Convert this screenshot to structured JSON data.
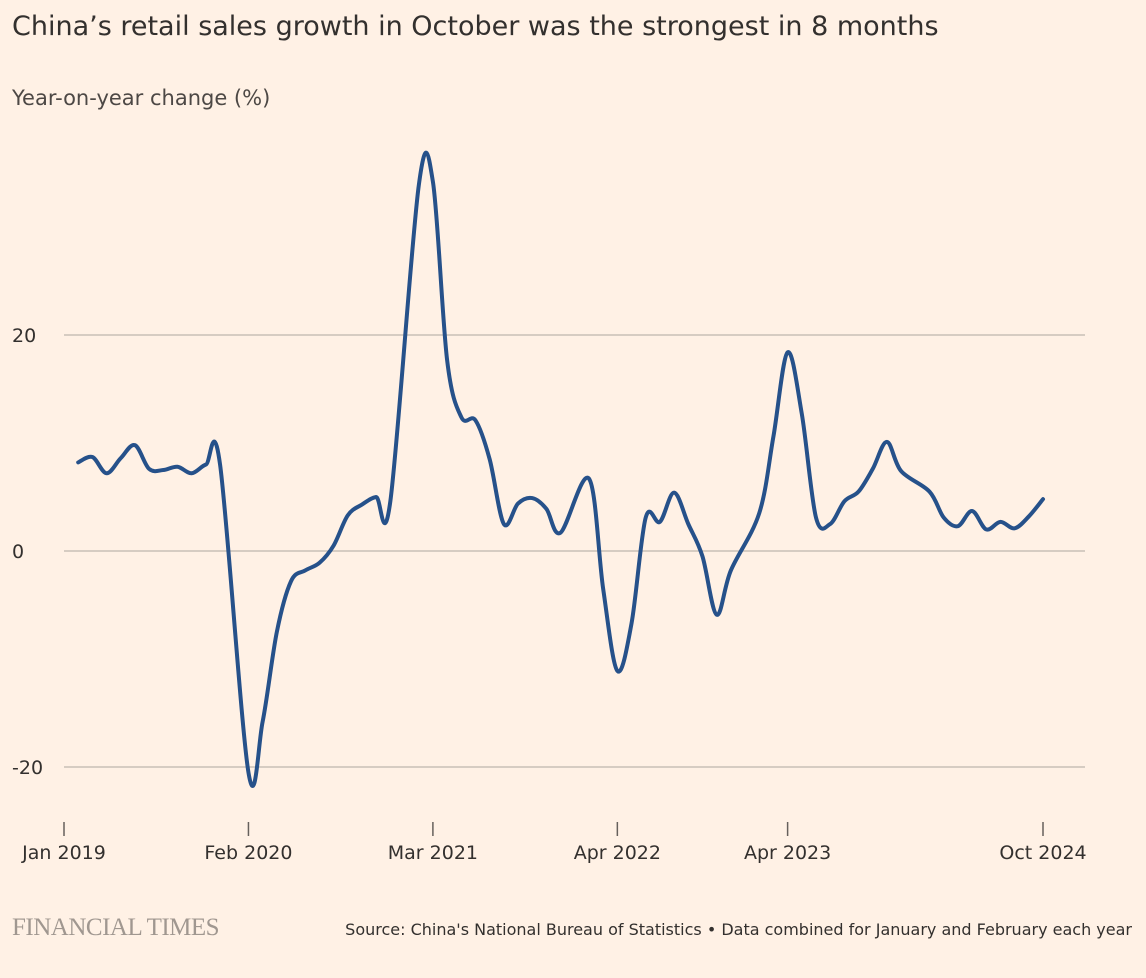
{
  "chart_data": {
    "type": "line",
    "title": "China’s retail sales growth in October was the strongest in 8 months",
    "subtitle": "Year-on-year change (%)",
    "brand": "FINANCIAL TIMES",
    "source": "Source: China's National Bureau of Statistics • Data combined for January and February each year",
    "x": [
      "2019-02",
      "2019-03",
      "2019-04",
      "2019-05",
      "2019-06",
      "2019-07",
      "2019-08",
      "2019-09",
      "2019-10",
      "2019-11",
      "2019-12",
      "2020-02",
      "2020-03",
      "2020-04",
      "2020-05",
      "2020-06",
      "2020-07",
      "2020-08",
      "2020-09",
      "2020-10",
      "2020-11",
      "2020-12",
      "2021-02",
      "2021-03",
      "2021-04",
      "2021-05",
      "2021-06",
      "2021-07",
      "2021-08",
      "2021-09",
      "2021-10",
      "2021-11",
      "2021-12",
      "2022-02",
      "2022-03",
      "2022-04",
      "2022-05",
      "2022-06",
      "2022-07",
      "2022-08",
      "2022-09",
      "2022-10",
      "2022-11",
      "2022-12",
      "2023-02",
      "2023-03",
      "2023-04",
      "2023-05",
      "2023-06",
      "2023-07",
      "2023-08",
      "2023-09",
      "2023-10",
      "2023-11",
      "2023-12",
      "2024-02",
      "2024-03",
      "2024-04",
      "2024-05",
      "2024-06",
      "2024-07",
      "2024-08",
      "2024-09",
      "2024-10"
    ],
    "series": [
      {
        "name": "Retail sales",
        "color": "#26518a",
        "values": [
          8.2,
          8.7,
          7.2,
          8.6,
          9.8,
          7.6,
          7.5,
          7.8,
          7.2,
          8.0,
          8.0,
          -20.5,
          -15.8,
          -7.5,
          -2.8,
          -1.8,
          -1.1,
          0.5,
          3.3,
          4.3,
          5.0,
          4.6,
          33.8,
          34.2,
          17.7,
          12.4,
          12.1,
          8.5,
          2.5,
          4.4,
          4.9,
          3.9,
          1.7,
          6.7,
          -3.5,
          -11.1,
          -6.7,
          3.1,
          2.7,
          5.4,
          2.5,
          -0.5,
          -5.9,
          -1.8,
          3.5,
          10.6,
          18.4,
          12.7,
          3.1,
          2.5,
          4.6,
          5.5,
          7.6,
          10.1,
          7.4,
          5.5,
          3.1,
          2.3,
          3.7,
          2.0,
          2.7,
          2.1,
          3.2,
          4.8
        ]
      }
    ],
    "xlim": [
      "2019-01",
      "2024-10"
    ],
    "xticks": [
      {
        "value": "2019-01",
        "label": "Jan 2019"
      },
      {
        "value": "2020-02",
        "label": "Feb 2020"
      },
      {
        "value": "2021-03",
        "label": "Mar 2021"
      },
      {
        "value": "2022-04",
        "label": "Apr 2022"
      },
      {
        "value": "2023-04",
        "label": "Apr 2023"
      },
      {
        "value": "2024-10",
        "label": "Oct 2024"
      }
    ],
    "ylim": [
      -25,
      40
    ],
    "yticks": [
      -20,
      0,
      20
    ],
    "grid": true
  }
}
